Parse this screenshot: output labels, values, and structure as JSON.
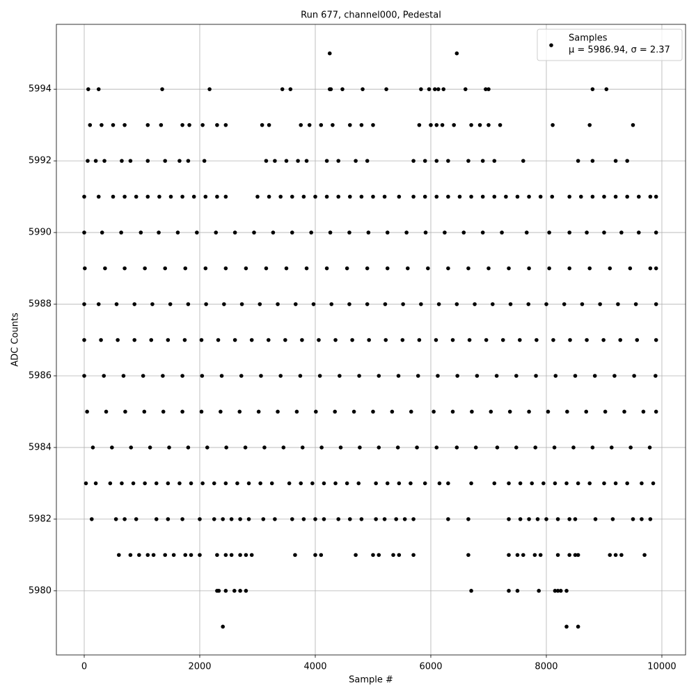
{
  "chart_data": {
    "type": "scatter",
    "title": "Run 677, channel000, Pedestal",
    "xlabel": "Sample #",
    "ylabel": "ADC Counts",
    "xlim": [
      -482,
      10410
    ],
    "ylim": [
      5978.21,
      5995.81
    ],
    "xticks": [
      0,
      2000,
      4000,
      6000,
      8000,
      10000
    ],
    "yticks": [
      5980,
      5982,
      5984,
      5986,
      5988,
      5990,
      5992,
      5994
    ],
    "grid": true,
    "legend": "upper right",
    "legend_text": "μ = 5986.94, σ = 2.37",
    "x": [
      4250,
      6450,
      70,
      250,
      1350,
      2170,
      3430,
      3570,
      4250,
      4270,
      4470,
      4820,
      5230,
      5830,
      5970,
      6070,
      6130,
      6220,
      6600,
      6950,
      7000,
      8800,
      9040,
      100,
      300,
      500,
      700,
      1100,
      1330,
      1700,
      1820,
      2050,
      2300,
      2450,
      3080,
      3200,
      3750,
      3900,
      4100,
      4300,
      4600,
      4800,
      5000,
      5800,
      6000,
      6100,
      6200,
      6400,
      6700,
      6850,
      7000,
      7200,
      8110,
      8750,
      9500,
      60,
      200,
      350,
      650,
      800,
      1100,
      1400,
      1650,
      1800,
      2080,
      3150,
      3300,
      3500,
      3700,
      3850,
      4200,
      4400,
      4700,
      4900,
      5700,
      5900,
      6100,
      6300,
      6650,
      6900,
      7100,
      7600,
      8550,
      8800,
      9200,
      9400,
      0,
      250,
      500,
      700,
      900,
      1100,
      1300,
      1500,
      1700,
      1900,
      2100,
      2300,
      2450,
      3000,
      3200,
      3400,
      3600,
      3800,
      4000,
      4200,
      4400,
      4600,
      4800,
      5000,
      5200,
      5450,
      5700,
      5900,
      6100,
      6300,
      6500,
      6700,
      6900,
      7100,
      7300,
      7500,
      7700,
      7900,
      8100,
      8400,
      8600,
      8800,
      9000,
      9200,
      9400,
      9600,
      9800,
      9900,
      0,
      310,
      640,
      980,
      1290,
      1620,
      1950,
      2280,
      2610,
      2940,
      3270,
      3600,
      3930,
      4260,
      4590,
      4920,
      5250,
      5580,
      5910,
      6240,
      6570,
      6900,
      7230,
      7660,
      8050,
      8400,
      8700,
      9000,
      9300,
      9600,
      9900,
      10,
      360,
      700,
      1050,
      1400,
      1750,
      2100,
      2450,
      2800,
      3150,
      3500,
      3850,
      4200,
      4550,
      4900,
      5250,
      5600,
      5950,
      6300,
      6650,
      7000,
      7350,
      7700,
      8050,
      8400,
      8750,
      9100,
      9450,
      9800,
      9900,
      0,
      250,
      560,
      870,
      1180,
      1490,
      1800,
      2110,
      2420,
      2730,
      3040,
      3350,
      3660,
      3970,
      4280,
      4590,
      4900,
      5210,
      5520,
      5830,
      6140,
      6450,
      6760,
      7070,
      7380,
      7690,
      8000,
      8310,
      8620,
      8930,
      9240,
      9550,
      9900,
      0,
      290,
      580,
      870,
      1160,
      1450,
      1740,
      2030,
      2320,
      2610,
      2900,
      3190,
      3480,
      3770,
      4060,
      4350,
      4640,
      4930,
      5220,
      5510,
      5800,
      6090,
      6380,
      6670,
      6960,
      7250,
      7540,
      7830,
      8120,
      8410,
      8700,
      8990,
      9280,
      9570,
      9900,
      0,
      340,
      680,
      1020,
      1360,
      1700,
      2040,
      2380,
      2720,
      3060,
      3400,
      3740,
      4080,
      4420,
      4760,
      5100,
      5440,
      5780,
      6120,
      6460,
      6800,
      7140,
      7480,
      7820,
      8160,
      8500,
      8840,
      9180,
      9520,
      9890,
      50,
      380,
      710,
      1040,
      1370,
      1700,
      2030,
      2360,
      2690,
      3020,
      3350,
      3680,
      4010,
      4340,
      4670,
      5000,
      5330,
      5660,
      6050,
      6380,
      6710,
      7040,
      7370,
      7700,
      8030,
      8360,
      8690,
      9020,
      9350,
      9680,
      9900,
      150,
      480,
      810,
      1140,
      1470,
      1800,
      2130,
      2460,
      2790,
      3120,
      3450,
      3780,
      4110,
      4440,
      4770,
      5100,
      5430,
      5760,
      6100,
      6450,
      6780,
      7150,
      7480,
      7810,
      8140,
      8470,
      8800,
      9130,
      9460,
      9790,
      30,
      200,
      450,
      650,
      850,
      1050,
      1250,
      1450,
      1650,
      1850,
      2050,
      2250,
      2450,
      2650,
      2850,
      3050,
      3250,
      3550,
      3750,
      3950,
      4150,
      4350,
      4550,
      4750,
      5050,
      5250,
      5450,
      5650,
      5900,
      6150,
      6300,
      6700,
      7100,
      7350,
      7550,
      7750,
      7950,
      8150,
      8350,
      8550,
      8750,
      9000,
      9200,
      9400,
      9650,
      9850,
      130,
      550,
      700,
      900,
      1250,
      1450,
      1700,
      2000,
      2250,
      2400,
      2550,
      2700,
      2850,
      3100,
      3300,
      3600,
      3800,
      4000,
      4150,
      4400,
      4600,
      4800,
      5050,
      5200,
      5400,
      5550,
      5700,
      6300,
      6650,
      7350,
      7550,
      7700,
      7850,
      8000,
      8200,
      8400,
      8500,
      8850,
      9150,
      9500,
      9650,
      9800,
      600,
      800,
      950,
      1100,
      1200,
      1400,
      1550,
      1750,
      1850,
      2000,
      2300,
      2450,
      2550,
      2700,
      2800,
      2900,
      3650,
      4000,
      4100,
      4700,
      5000,
      5100,
      5350,
      5450,
      5700,
      6650,
      7350,
      7500,
      7600,
      7800,
      7900,
      8200,
      8400,
      8500,
      8550,
      9100,
      9200,
      9300,
      9700,
      2300,
      2330,
      2450,
      2600,
      2700,
      2800,
      6700,
      7350,
      7500,
      7870,
      8150,
      8200,
      8250,
      8350,
      2400,
      8350,
      8550
    ],
    "series": [
      {
        "name": "Samples",
        "color": "#000000",
        "values": [
          5995,
          5995,
          5994,
          5994,
          5994,
          5994,
          5994,
          5994,
          5994,
          5994,
          5994,
          5994,
          5994,
          5994,
          5994,
          5994,
          5994,
          5994,
          5994,
          5994,
          5994,
          5994,
          5994,
          5993,
          5993,
          5993,
          5993,
          5993,
          5993,
          5993,
          5993,
          5993,
          5993,
          5993,
          5993,
          5993,
          5993,
          5993,
          5993,
          5993,
          5993,
          5993,
          5993,
          5993,
          5993,
          5993,
          5993,
          5993,
          5993,
          5993,
          5993,
          5993,
          5993,
          5993,
          5993,
          5992,
          5992,
          5992,
          5992,
          5992,
          5992,
          5992,
          5992,
          5992,
          5992,
          5992,
          5992,
          5992,
          5992,
          5992,
          5992,
          5992,
          5992,
          5992,
          5992,
          5992,
          5992,
          5992,
          5992,
          5992,
          5992,
          5992,
          5992,
          5992,
          5992,
          5992,
          5991,
          5991,
          5991,
          5991,
          5991,
          5991,
          5991,
          5991,
          5991,
          5991,
          5991,
          5991,
          5991,
          5991,
          5991,
          5991,
          5991,
          5991,
          5991,
          5991,
          5991,
          5991,
          5991,
          5991,
          5991,
          5991,
          5991,
          5991,
          5991,
          5991,
          5991,
          5991,
          5991,
          5991,
          5991,
          5991,
          5991,
          5991,
          5991,
          5991,
          5991,
          5991,
          5991,
          5991,
          5991,
          5991,
          5991,
          5991,
          5990,
          5990,
          5990,
          5990,
          5990,
          5990,
          5990,
          5990,
          5990,
          5990,
          5990,
          5990,
          5990,
          5990,
          5990,
          5990,
          5990,
          5990,
          5990,
          5990,
          5990,
          5990,
          5990,
          5990,
          5990,
          5990,
          5990,
          5990,
          5990,
          5990,
          5990,
          5989,
          5989,
          5989,
          5989,
          5989,
          5989,
          5989,
          5989,
          5989,
          5989,
          5989,
          5989,
          5989,
          5989,
          5989,
          5989,
          5989,
          5989,
          5989,
          5989,
          5989,
          5989,
          5989,
          5989,
          5989,
          5989,
          5989,
          5989,
          5989,
          5989,
          5988,
          5988,
          5988,
          5988,
          5988,
          5988,
          5988,
          5988,
          5988,
          5988,
          5988,
          5988,
          5988,
          5988,
          5988,
          5988,
          5988,
          5988,
          5988,
          5988,
          5988,
          5988,
          5988,
          5988,
          5988,
          5988,
          5988,
          5988,
          5988,
          5988,
          5988,
          5988,
          5988,
          5987,
          5987,
          5987,
          5987,
          5987,
          5987,
          5987,
          5987,
          5987,
          5987,
          5987,
          5987,
          5987,
          5987,
          5987,
          5987,
          5987,
          5987,
          5987,
          5987,
          5987,
          5987,
          5987,
          5987,
          5987,
          5987,
          5987,
          5987,
          5987,
          5987,
          5987,
          5987,
          5987,
          5987,
          5987,
          5986,
          5986,
          5986,
          5986,
          5986,
          5986,
          5986,
          5986,
          5986,
          5986,
          5986,
          5986,
          5986,
          5986,
          5986,
          5986,
          5986,
          5986,
          5986,
          5986,
          5986,
          5986,
          5986,
          5986,
          5986,
          5986,
          5986,
          5986,
          5986,
          5986,
          5985,
          5985,
          5985,
          5985,
          5985,
          5985,
          5985,
          5985,
          5985,
          5985,
          5985,
          5985,
          5985,
          5985,
          5985,
          5985,
          5985,
          5985,
          5985,
          5985,
          5985,
          5985,
          5985,
          5985,
          5985,
          5985,
          5985,
          5985,
          5985,
          5985,
          5985,
          5984,
          5984,
          5984,
          5984,
          5984,
          5984,
          5984,
          5984,
          5984,
          5984,
          5984,
          5984,
          5984,
          5984,
          5984,
          5984,
          5984,
          5984,
          5984,
          5984,
          5984,
          5984,
          5984,
          5984,
          5984,
          5984,
          5984,
          5984,
          5984,
          5984,
          5983,
          5983,
          5983,
          5983,
          5983,
          5983,
          5983,
          5983,
          5983,
          5983,
          5983,
          5983,
          5983,
          5983,
          5983,
          5983,
          5983,
          5983,
          5983,
          5983,
          5983,
          5983,
          5983,
          5983,
          5983,
          5983,
          5983,
          5983,
          5983,
          5983,
          5983,
          5983,
          5983,
          5983,
          5983,
          5983,
          5983,
          5983,
          5983,
          5983,
          5983,
          5983,
          5983,
          5983,
          5983,
          5983,
          5982,
          5982,
          5982,
          5982,
          5982,
          5982,
          5982,
          5982,
          5982,
          5982,
          5982,
          5982,
          5982,
          5982,
          5982,
          5982,
          5982,
          5982,
          5982,
          5982,
          5982,
          5982,
          5982,
          5982,
          5982,
          5982,
          5982,
          5982,
          5982,
          5982,
          5982,
          5982,
          5982,
          5982,
          5982,
          5982,
          5982,
          5982,
          5982,
          5982,
          5982,
          5982,
          5981,
          5981,
          5981,
          5981,
          5981,
          5981,
          5981,
          5981,
          5981,
          5981,
          5981,
          5981,
          5981,
          5981,
          5981,
          5981,
          5981,
          5981,
          5981,
          5981,
          5981,
          5981,
          5981,
          5981,
          5981,
          5981,
          5981,
          5981,
          5981,
          5981,
          5981,
          5981,
          5981,
          5981,
          5981,
          5981,
          5981,
          5981,
          5981,
          5980,
          5980,
          5980,
          5980,
          5980,
          5980,
          5980,
          5980,
          5980,
          5980,
          5980,
          5980,
          5980,
          5980,
          5979,
          5979,
          5979
        ]
      }
    ]
  }
}
